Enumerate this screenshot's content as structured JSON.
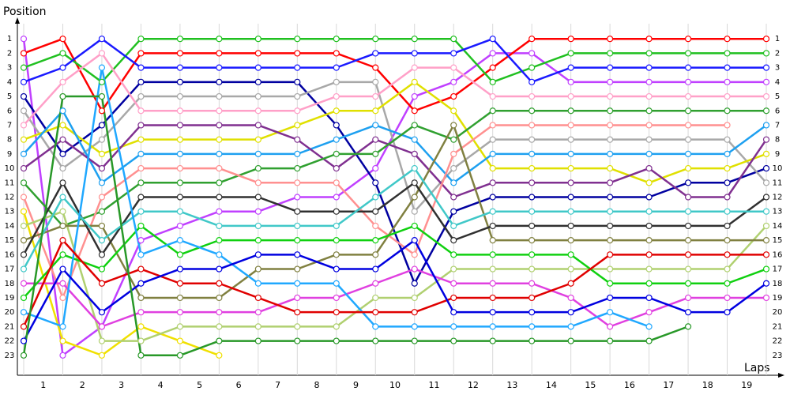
{
  "chart_data": {
    "type": "line",
    "y_label": "Position",
    "x_label": "Laps",
    "x": [
      0,
      1,
      2,
      3,
      4,
      5,
      6,
      7,
      8,
      9,
      10,
      11,
      12,
      13,
      14,
      15,
      16,
      17,
      18,
      19
    ],
    "xlim": [
      0,
      19
    ],
    "xticks": [
      {
        "value": 0.5,
        "label": "1"
      },
      {
        "value": 1.5,
        "label": "2"
      },
      {
        "value": 2.5,
        "label": "3"
      },
      {
        "value": 3.5,
        "label": "4"
      },
      {
        "value": 4.5,
        "label": "5"
      },
      {
        "value": 5.5,
        "label": "6"
      },
      {
        "value": 6.5,
        "label": "7"
      },
      {
        "value": 7.5,
        "label": "8"
      },
      {
        "value": 8.5,
        "label": "9"
      },
      {
        "value": 9.5,
        "label": "10"
      },
      {
        "value": 10.5,
        "label": "11"
      },
      {
        "value": 11.5,
        "label": "12"
      },
      {
        "value": 12.5,
        "label": "13"
      },
      {
        "value": 13.5,
        "label": "14"
      },
      {
        "value": 14.5,
        "label": "15"
      },
      {
        "value": 15.5,
        "label": "16"
      },
      {
        "value": 16.5,
        "label": "17"
      },
      {
        "value": 17.5,
        "label": "18"
      },
      {
        "value": 18.5,
        "label": "19"
      }
    ],
    "ylim": [
      24,
      0
    ],
    "yticks": [
      1,
      2,
      3,
      4,
      5,
      6,
      7,
      8,
      9,
      10,
      11,
      12,
      13,
      14,
      15,
      16,
      17,
      18,
      19,
      20,
      21,
      22,
      23
    ],
    "grid": true,
    "series": [
      {
        "color": "#c040ff",
        "values": [
          1,
          23,
          21,
          15,
          14,
          13,
          13,
          12,
          12,
          10,
          5,
          4,
          2,
          2,
          4,
          4,
          4,
          4,
          4,
          4
        ]
      },
      {
        "color": "#ff0000",
        "values": [
          2,
          1,
          6,
          2,
          2,
          2,
          2,
          2,
          2,
          3,
          6,
          5,
          3,
          1,
          1,
          1,
          1,
          1,
          1,
          1
        ]
      },
      {
        "color": "#20c020",
        "values": [
          3,
          2,
          4,
          1,
          1,
          1,
          1,
          1,
          1,
          1,
          1,
          1,
          4,
          3,
          2,
          2,
          2,
          2,
          2,
          2
        ]
      },
      {
        "color": "#1a1aff",
        "values": [
          4,
          3,
          1,
          3,
          3,
          3,
          3,
          3,
          3,
          2,
          2,
          2,
          1,
          4,
          3,
          3,
          3,
          3,
          3,
          3
        ]
      },
      {
        "color": "#0000a0",
        "values": [
          5,
          9,
          7,
          4,
          4,
          4,
          4,
          4,
          7,
          11,
          18,
          13,
          12,
          12,
          12,
          12,
          12,
          11,
          11,
          10
        ]
      },
      {
        "color": "#a8a8a8",
        "values": [
          6,
          10,
          8,
          5,
          5,
          5,
          5,
          5,
          4,
          4,
          13,
          10,
          8,
          8,
          8,
          8,
          8,
          8,
          8,
          11
        ]
      },
      {
        "color": "#ffa0c8",
        "values": [
          7,
          4,
          2,
          6,
          6,
          6,
          6,
          6,
          5,
          5,
          3,
          3,
          5,
          5,
          5,
          5,
          5,
          5,
          5,
          5
        ]
      },
      {
        "color": "#e0e000",
        "values": [
          8,
          7,
          9,
          8,
          8,
          8,
          8,
          7,
          6,
          6,
          4,
          6,
          10,
          10,
          10,
          10,
          11,
          10,
          10,
          9
        ]
      },
      {
        "color": "#1ea0f0",
        "values": [
          9,
          6,
          11,
          9,
          9,
          9,
          9,
          9,
          8,
          7,
          8,
          11,
          9,
          9,
          9,
          9,
          9,
          9,
          9,
          7
        ]
      },
      {
        "color": "#803090",
        "values": [
          10,
          8,
          10,
          7,
          7,
          7,
          7,
          8,
          10,
          8,
          9,
          12,
          11,
          11,
          11,
          11,
          10,
          12,
          12,
          8
        ]
      },
      {
        "color": "#30a030",
        "values": [
          11,
          14,
          13,
          11,
          11,
          11,
          10,
          10,
          9,
          9,
          7,
          8,
          6,
          6,
          6,
          6,
          6,
          6,
          6,
          6
        ]
      },
      {
        "color": "#ff9090",
        "values": [
          12,
          19,
          12,
          10,
          10,
          10,
          11,
          11,
          11,
          14,
          16,
          9,
          7,
          7,
          7,
          7,
          7,
          7,
          7,
          null
        ]
      },
      {
        "color": "#f0e000",
        "values": [
          13,
          22,
          23,
          21,
          22,
          23,
          null,
          null,
          null,
          null,
          null,
          null,
          null,
          null,
          null,
          null,
          null,
          null,
          null,
          null
        ]
      },
      {
        "color": "#b0d070",
        "values": [
          14,
          13,
          22,
          22,
          21,
          21,
          21,
          21,
          21,
          19,
          19,
          17,
          17,
          17,
          17,
          17,
          17,
          17,
          17,
          14
        ]
      },
      {
        "color": "#808040",
        "values": [
          15,
          14,
          14,
          19,
          19,
          19,
          17,
          17,
          16,
          16,
          12,
          7,
          15,
          15,
          15,
          15,
          15,
          15,
          15,
          15
        ]
      },
      {
        "color": "#303030",
        "values": [
          16,
          11,
          16,
          12,
          12,
          12,
          12,
          13,
          13,
          13,
          11,
          15,
          14,
          14,
          14,
          14,
          14,
          14,
          14,
          12
        ]
      },
      {
        "color": "#40c8c8",
        "values": [
          17,
          12,
          15,
          13,
          13,
          14,
          14,
          14,
          14,
          12,
          10,
          14,
          13,
          13,
          13,
          13,
          13,
          13,
          13,
          13
        ]
      },
      {
        "color": "#e040e0",
        "values": [
          18,
          18,
          21,
          20,
          20,
          20,
          20,
          19,
          19,
          18,
          17,
          18,
          18,
          18,
          19,
          21,
          20,
          19,
          19,
          19
        ]
      },
      {
        "color": "#10d010",
        "values": [
          19,
          16,
          17,
          14,
          16,
          15,
          15,
          15,
          15,
          15,
          14,
          16,
          16,
          16,
          16,
          18,
          18,
          18,
          18,
          17
        ]
      },
      {
        "color": "#20a8ff",
        "values": [
          20,
          21,
          3,
          16,
          15,
          16,
          18,
          18,
          18,
          21,
          21,
          21,
          21,
          21,
          21,
          20,
          21,
          null,
          null,
          null
        ]
      },
      {
        "color": "#e00000",
        "values": [
          21,
          15,
          18,
          17,
          18,
          18,
          19,
          20,
          20,
          20,
          20,
          19,
          19,
          19,
          18,
          16,
          16,
          16,
          16,
          16
        ]
      },
      {
        "color": "#0000e0",
        "values": [
          22,
          17,
          20,
          18,
          17,
          17,
          16,
          16,
          17,
          17,
          15,
          20,
          20,
          20,
          20,
          19,
          19,
          20,
          20,
          18
        ]
      },
      {
        "color": "#289828",
        "values": [
          23,
          5,
          5,
          23,
          23,
          22,
          22,
          22,
          22,
          22,
          22,
          22,
          22,
          22,
          22,
          22,
          22,
          21,
          null,
          null
        ]
      }
    ]
  }
}
